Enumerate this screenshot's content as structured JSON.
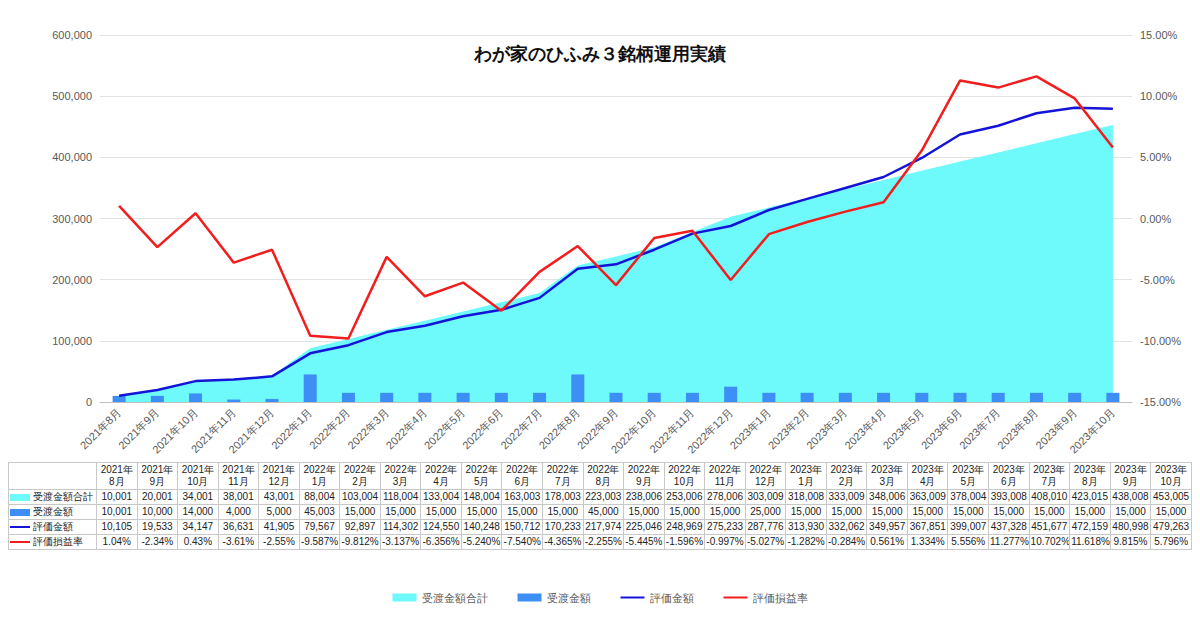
{
  "chart_data": {
    "type": "combo",
    "title": "わが家のひふみ３銘柄運用実績",
    "categories": [
      "2021年8月",
      "2021年9月",
      "2021年10月",
      "2021年11月",
      "2021年12月",
      "2022年1月",
      "2022年2月",
      "2022年3月",
      "2022年4月",
      "2022年5月",
      "2022年6月",
      "2022年7月",
      "2022年8月",
      "2022年9月",
      "2022年10月",
      "2022年11月",
      "2022年12月",
      "2023年1月",
      "2023年2月",
      "2023年3月",
      "2023年4月",
      "2023年5月",
      "2023年6月",
      "2023年7月",
      "2023年8月",
      "2023年9月",
      "2023年10月"
    ],
    "ylim": [
      0,
      600000
    ],
    "yticks": [
      0,
      {
        "value": 100000,
        "label": "100,000"
      },
      {
        "value": 200000,
        "label": "200,000"
      },
      {
        "value": 300000,
        "label": "300,000"
      },
      {
        "value": 400000,
        "label": "400,000"
      },
      {
        "value": 500000,
        "label": "500,000"
      },
      {
        "value": 600000,
        "label": "600,000"
      }
    ],
    "y2lim": [
      -15,
      15
    ],
    "y2ticks": [
      {
        "value": -15,
        "label": "-15.00%"
      },
      {
        "value": -10,
        "label": "-10.00%"
      },
      {
        "value": -5,
        "label": "-5.00%"
      },
      {
        "value": 0,
        "label": "0.00%"
      },
      {
        "value": 5,
        "label": "5.00%"
      },
      {
        "value": 10,
        "label": "10.00%"
      },
      {
        "value": 15,
        "label": "15.00%"
      }
    ],
    "grid": true,
    "legend": "bottom",
    "series": [
      {
        "name": "受渡金額合計",
        "type": "area",
        "color": "#6ef9fb",
        "values": [
          10001,
          20001,
          34001,
          38001,
          43001,
          88004,
          103004,
          118004,
          133004,
          148004,
          163003,
          178003,
          223003,
          238006,
          253006,
          278006,
          303009,
          318008,
          333009,
          348006,
          363009,
          378004,
          393008,
          408010,
          423015,
          438008,
          453005
        ],
        "value_labels": [
          "10,001",
          "20,001",
          "34,001",
          "38,001",
          "43,001",
          "88,004",
          "103,004",
          "118,004",
          "133,004",
          "148,004",
          "163,003",
          "178,003",
          "223,003",
          "238,006",
          "253,006",
          "278,006",
          "303,009",
          "318,008",
          "333,009",
          "348,006",
          "363,009",
          "378,004",
          "393,008",
          "408,010",
          "423,015",
          "438,008",
          "453,005"
        ]
      },
      {
        "name": "受渡金額",
        "type": "bar",
        "color": "#3d8ef5",
        "values": [
          10001,
          10000,
          14000,
          4000,
          5000,
          45003,
          15000,
          15000,
          15000,
          15000,
          15000,
          15000,
          45000,
          15000,
          15000,
          15000,
          25000,
          15000,
          15000,
          15000,
          15000,
          15000,
          15000,
          15000,
          15000,
          15000,
          15000
        ],
        "value_labels": [
          "10,001",
          "10,000",
          "14,000",
          "4,000",
          "5,000",
          "45,003",
          "15,000",
          "15,000",
          "15,000",
          "15,000",
          "15,000",
          "15,000",
          "45,000",
          "15,000",
          "15,000",
          "15,000",
          "25,000",
          "15,000",
          "15,000",
          "15,000",
          "15,000",
          "15,000",
          "15,000",
          "15,000",
          "15,000",
          "15,000",
          "15,000"
        ]
      },
      {
        "name": "評価金額",
        "type": "line",
        "color": "#1414d8",
        "values": [
          10105,
          19533,
          34147,
          36631,
          41905,
          79567,
          92897,
          114302,
          124550,
          140248,
          150712,
          170233,
          217974,
          225046,
          248969,
          275233,
          287776,
          313930,
          332062,
          349957,
          367851,
          399007,
          437328,
          451677,
          472159,
          480998,
          479263
        ],
        "value_labels": [
          "10,105",
          "19,533",
          "34,147",
          "36,631",
          "41,905",
          "79,567",
          "92,897",
          "114,302",
          "124,550",
          "140,248",
          "150,712",
          "170,233",
          "217,974",
          "225,046",
          "248,969",
          "275,233",
          "287,776",
          "313,930",
          "332,062",
          "349,957",
          "367,851",
          "399,007",
          "437,328",
          "451,677",
          "472,159",
          "480,998",
          "479,263"
        ]
      },
      {
        "name": "評価損益率",
        "type": "line",
        "color": "#f21d1d",
        "axis": "y2",
        "values": [
          1.04,
          -2.34,
          0.43,
          -3.61,
          -2.55,
          -9.587,
          -9.812,
          -3.137,
          -6.356,
          -5.24,
          -7.54,
          -4.365,
          -2.255,
          -5.445,
          -1.596,
          -0.997,
          -5.027,
          -1.282,
          -0.284,
          0.561,
          1.334,
          5.556,
          11.277,
          10.702,
          11.618,
          9.815,
          5.796
        ],
        "value_labels": [
          "1.04%",
          "-2.34%",
          "0.43%",
          "-3.61%",
          "-2.55%",
          "-9.587%",
          "-9.812%",
          "-3.137%",
          "-6.356%",
          "-5.240%",
          "-7.540%",
          "-4.365%",
          "-2.255%",
          "-5.445%",
          "-1.596%",
          "-0.997%",
          "-5.027%",
          "-1.282%",
          "-0.284%",
          "0.561%",
          "1.334%",
          "5.556%",
          "11.277%",
          "10.702%",
          "11.618%",
          "9.815%",
          "5.796%"
        ]
      }
    ]
  }
}
